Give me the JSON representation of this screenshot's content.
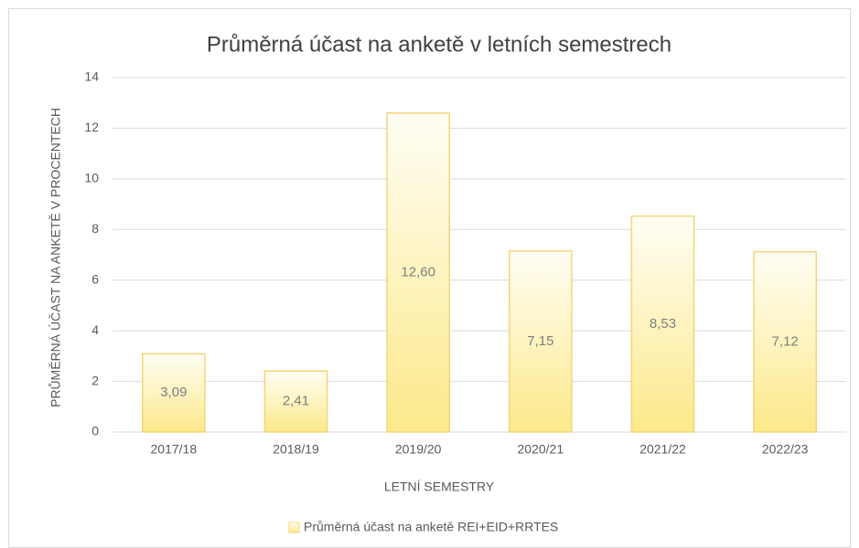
{
  "chart_data": {
    "type": "bar",
    "title": "Průměrná účast na anketě v letních semestrech",
    "x_label": "LETNÍ SEMESTRY",
    "y_label": "PRŮMĚRNÁ ÚČAST NA ANKETĚ V PROCENTECH",
    "categories": [
      "2017/18",
      "2018/19",
      "2019/20",
      "2020/21",
      "2021/22",
      "2022/23"
    ],
    "series": [
      {
        "name": "Průměrná účast na anketě REI+EID+RRTES",
        "color": "#fce98a",
        "values": [
          3.09,
          2.41,
          12.6,
          7.15,
          8.53,
          7.12
        ],
        "value_labels": [
          "3,09",
          "2,41",
          "12,60",
          "7,15",
          "8,53",
          "7,12"
        ]
      }
    ],
    "ylim": [
      0,
      14
    ],
    "yticks": [
      0,
      2,
      4,
      6,
      8,
      10,
      12,
      14
    ],
    "grid": true,
    "legend": "bottom"
  }
}
